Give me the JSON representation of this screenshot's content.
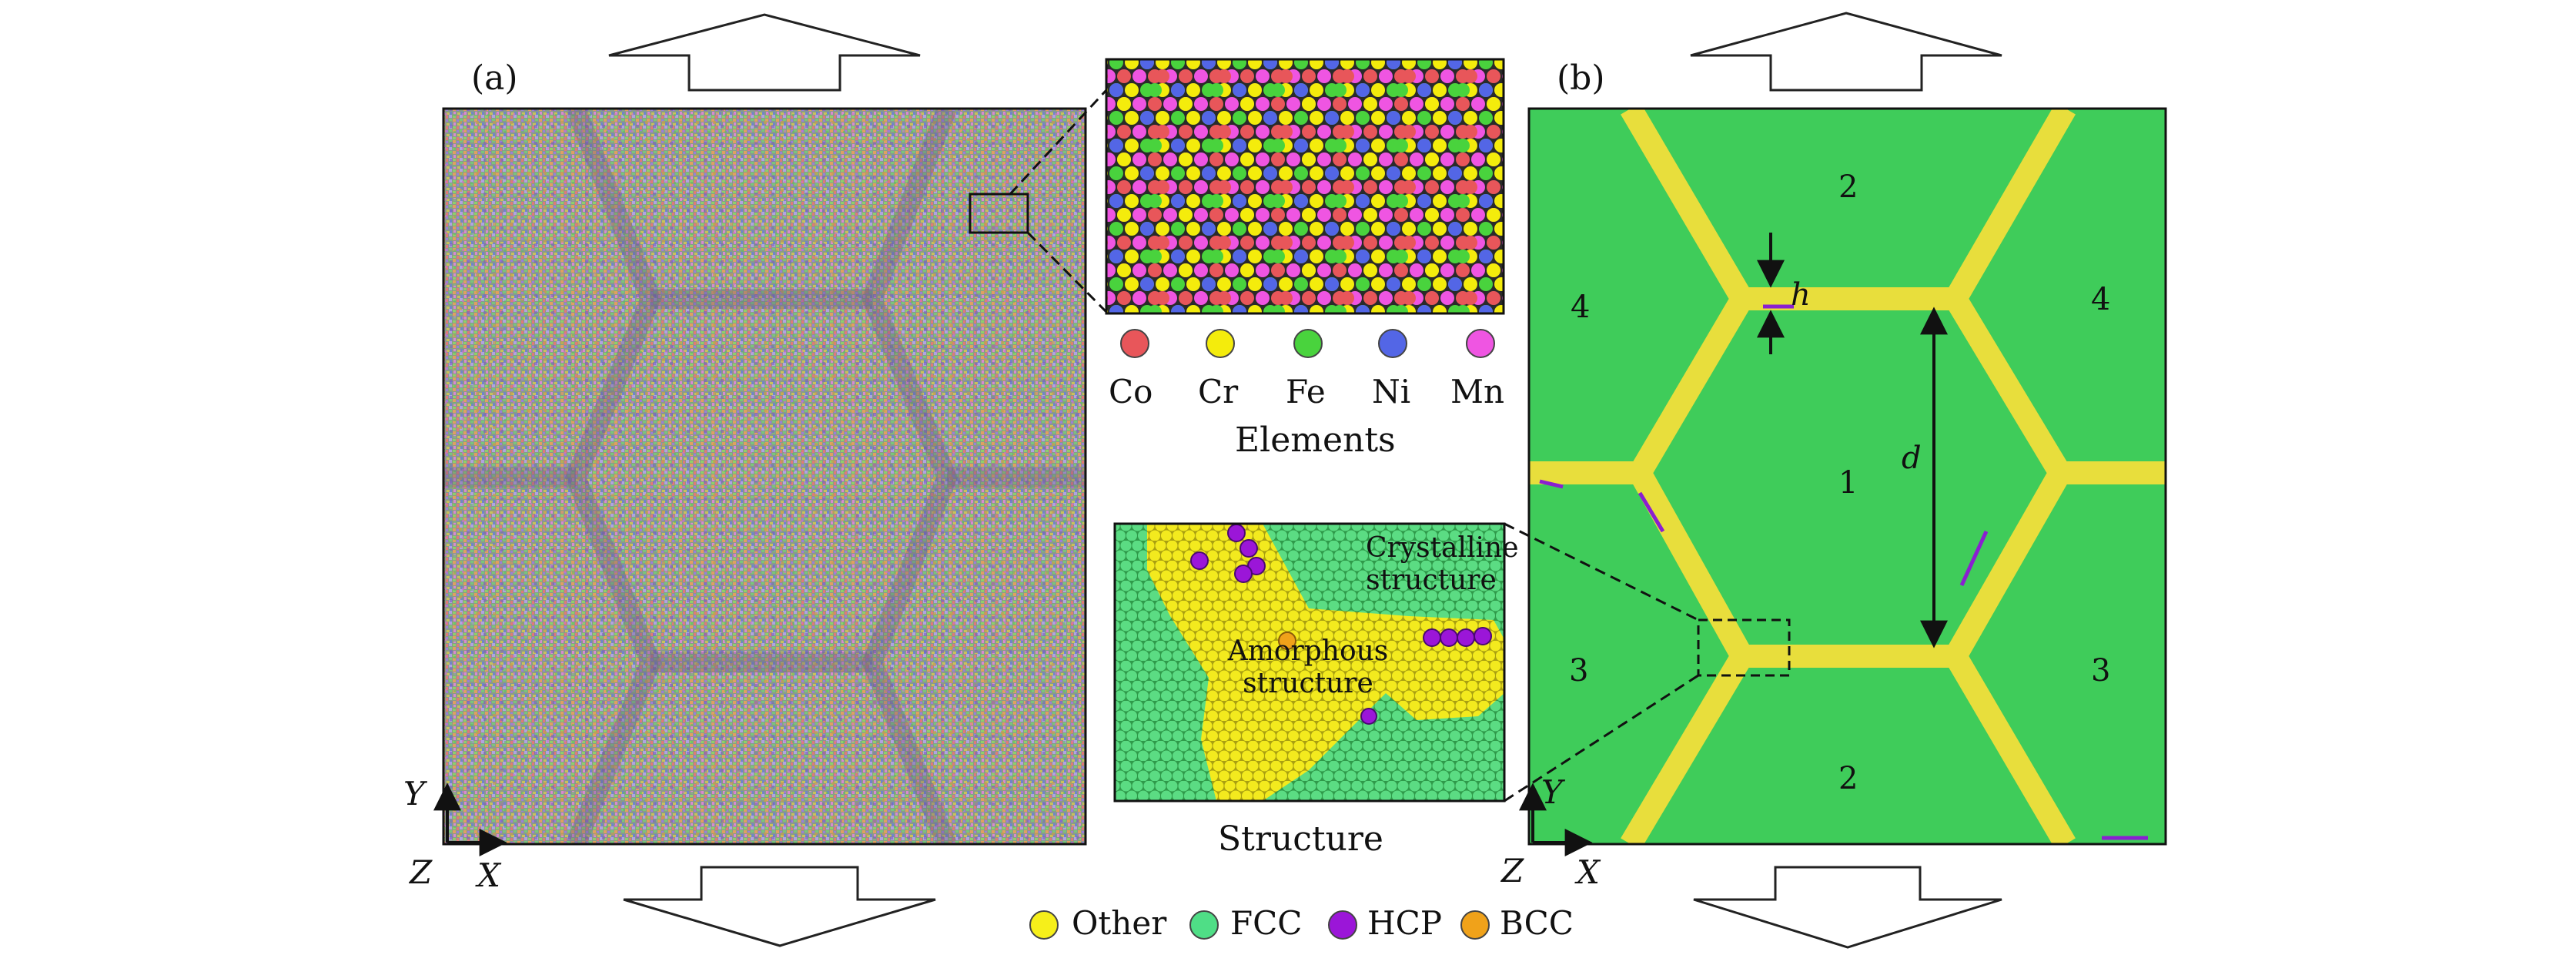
{
  "panel_a": {
    "label": "(a)"
  },
  "panel_b": {
    "label": "(b)"
  },
  "elements_legend": {
    "items": [
      {
        "name": "Co",
        "color": "#e8565a"
      },
      {
        "name": "Cr",
        "color": "#f4ec0c"
      },
      {
        "name": "Fe",
        "color": "#49d33d"
      },
      {
        "name": "Ni",
        "color": "#5366e6"
      },
      {
        "name": "Mn",
        "color": "#ef55e2"
      }
    ],
    "caption": "Elements"
  },
  "structure_inset": {
    "crystalline_label": [
      "Crystalline",
      "structure"
    ],
    "amorphous_label": [
      "Amorphous",
      "structure"
    ],
    "caption": "Structure"
  },
  "structure_legend": {
    "items": [
      {
        "name": "Other",
        "color": "#f6ef1a"
      },
      {
        "name": "FCC",
        "color": "#4fde86"
      },
      {
        "name": "HCP",
        "color": "#9b16d8"
      },
      {
        "name": "BCC",
        "color": "#f0a21a"
      }
    ]
  },
  "grain_labels": {
    "g1": "1",
    "g2": "2",
    "g3": "3",
    "g4": "4"
  },
  "annotations": {
    "h": "h",
    "d": "d"
  },
  "axes": {
    "y": "Y",
    "x": "X",
    "z": "Z"
  },
  "colors": {
    "fcc_green": "#3fcc5a",
    "boundary_yellow": "#e8de3c",
    "hcp_purple": "#8a1fd0"
  }
}
